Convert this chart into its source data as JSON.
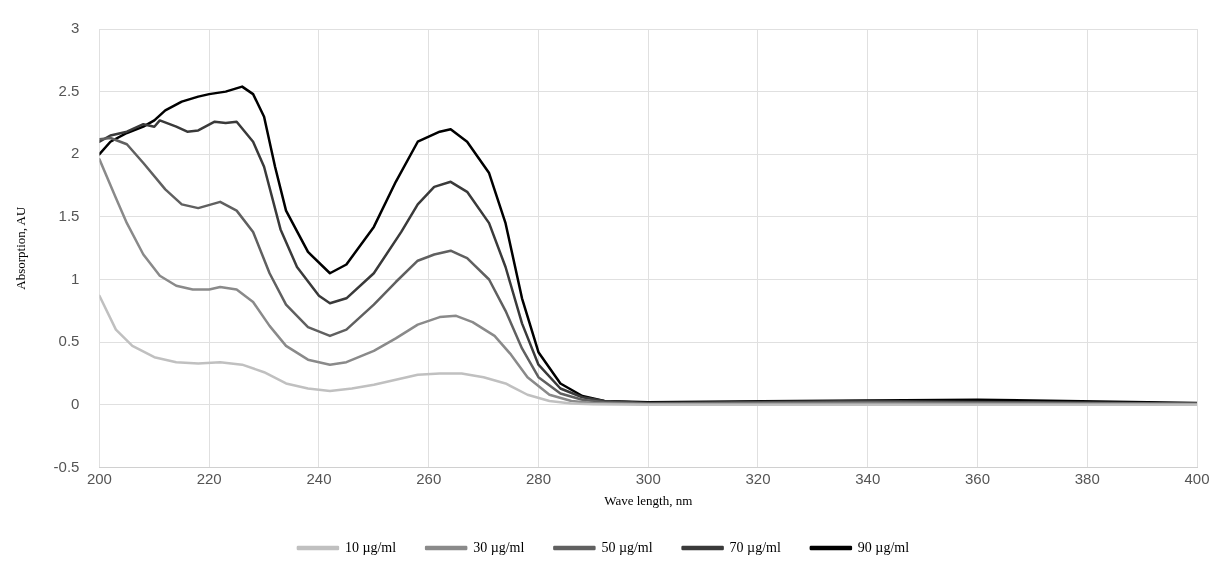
{
  "chart_data": {
    "type": "line",
    "xlabel": "Wave length, nm",
    "ylabel": "Absorption, AU",
    "xlim": [
      200,
      400
    ],
    "xticks": [
      200,
      220,
      240,
      260,
      280,
      300,
      320,
      340,
      360,
      380,
      400
    ],
    "ylim": [
      -0.5,
      3
    ],
    "yticks": [
      -0.5,
      0,
      0.5,
      1,
      1.5,
      2,
      2.5,
      3
    ],
    "grid": true,
    "legend": "bottom",
    "marker": "none",
    "line_style": "solid",
    "series": [
      {
        "name": "10 µg/ml",
        "color": "#c0c0c0",
        "x": [
          200,
          203,
          206,
          210,
          214,
          218,
          222,
          226,
          230,
          234,
          238,
          242,
          246,
          250,
          254,
          258,
          262,
          266,
          270,
          274,
          278,
          282,
          286,
          290,
          300,
          400
        ],
        "values": [
          0.87,
          0.6,
          0.47,
          0.38,
          0.34,
          0.33,
          0.34,
          0.32,
          0.26,
          0.17,
          0.13,
          0.11,
          0.13,
          0.16,
          0.2,
          0.24,
          0.25,
          0.25,
          0.22,
          0.17,
          0.08,
          0.03,
          0.01,
          0.005,
          0,
          0
        ]
      },
      {
        "name": "30 µg/ml",
        "color": "#8a8a8a",
        "x": [
          200,
          203,
          205,
          208,
          211,
          214,
          217,
          220,
          222,
          225,
          228,
          231,
          234,
          238,
          242,
          245,
          250,
          254,
          258,
          262,
          265,
          268,
          272,
          275,
          278,
          282,
          286,
          290,
          300,
          340,
          400
        ],
        "values": [
          1.96,
          1.65,
          1.45,
          1.2,
          1.03,
          0.95,
          0.92,
          0.92,
          0.94,
          0.92,
          0.82,
          0.63,
          0.47,
          0.36,
          0.32,
          0.34,
          0.43,
          0.53,
          0.64,
          0.7,
          0.71,
          0.66,
          0.55,
          0.4,
          0.22,
          0.08,
          0.03,
          0.015,
          0.005,
          0.01,
          0.005
        ]
      },
      {
        "name": "50 µg/ml",
        "color": "#606060",
        "x": [
          200,
          202,
          205,
          208,
          212,
          215,
          218,
          222,
          225,
          228,
          231,
          234,
          238,
          242,
          245,
          250,
          254,
          258,
          261,
          264,
          267,
          271,
          274,
          277,
          280,
          284,
          288,
          292,
          300,
          340,
          400
        ],
        "values": [
          2.12,
          2.13,
          2.08,
          1.93,
          1.72,
          1.6,
          1.57,
          1.62,
          1.55,
          1.38,
          1.05,
          0.8,
          0.62,
          0.55,
          0.6,
          0.8,
          0.98,
          1.15,
          1.2,
          1.23,
          1.17,
          1.0,
          0.75,
          0.45,
          0.22,
          0.09,
          0.04,
          0.02,
          0.01,
          0.02,
          0.01
        ]
      },
      {
        "name": "70 µg/ml",
        "color": "#3a3a3a",
        "x": [
          200,
          202,
          205,
          208,
          210,
          211,
          214,
          216,
          218,
          221,
          223,
          225,
          228,
          230,
          233,
          236,
          240,
          242,
          245,
          250,
          255,
          258,
          261,
          264,
          267,
          271,
          274,
          277,
          280,
          284,
          288,
          292,
          300,
          340,
          400
        ],
        "values": [
          2.1,
          2.15,
          2.18,
          2.24,
          2.22,
          2.27,
          2.22,
          2.18,
          2.19,
          2.26,
          2.25,
          2.26,
          2.1,
          1.9,
          1.4,
          1.1,
          0.87,
          0.81,
          0.85,
          1.05,
          1.38,
          1.6,
          1.74,
          1.78,
          1.7,
          1.45,
          1.1,
          0.65,
          0.32,
          0.13,
          0.06,
          0.03,
          0.015,
          0.03,
          0.01
        ]
      },
      {
        "name": "90 µg/ml",
        "color": "#000000",
        "x": [
          200,
          202,
          205,
          208,
          210,
          212,
          215,
          218,
          220,
          223,
          226,
          228,
          230,
          232,
          234,
          238,
          242,
          245,
          250,
          254,
          258,
          262,
          264,
          267,
          271,
          274,
          277,
          280,
          284,
          288,
          292,
          300,
          340,
          360,
          400
        ],
        "values": [
          2.0,
          2.1,
          2.17,
          2.22,
          2.27,
          2.35,
          2.42,
          2.46,
          2.48,
          2.5,
          2.54,
          2.48,
          2.3,
          1.9,
          1.55,
          1.22,
          1.05,
          1.12,
          1.42,
          1.78,
          2.1,
          2.18,
          2.2,
          2.1,
          1.85,
          1.45,
          0.85,
          0.42,
          0.17,
          0.07,
          0.03,
          0.02,
          0.035,
          0.04,
          0.015
        ]
      }
    ]
  }
}
